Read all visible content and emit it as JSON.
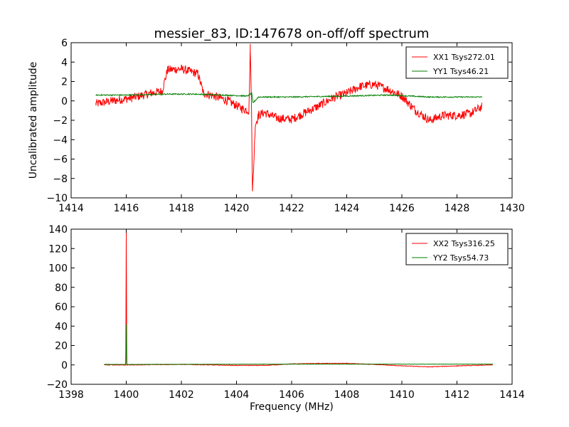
{
  "title": "messier_83, ID:147678 on-off/off spectrum",
  "colors": {
    "xx": "#ff0000",
    "yy": "#007f00",
    "axis": "#000000"
  },
  "chart_data": [
    {
      "type": "line",
      "ylabel": "Uncalibrated amplitude",
      "xlabel": "",
      "xlim": [
        1414,
        1430
      ],
      "ylim": [
        -10,
        6
      ],
      "xticks": [
        1414,
        1416,
        1418,
        1420,
        1422,
        1424,
        1426,
        1428,
        1430
      ],
      "yticks": [
        -10,
        -8,
        -6,
        -4,
        -2,
        0,
        2,
        4,
        6
      ],
      "legend_position": "top-right",
      "series": [
        {
          "name": "XX1 Tsys272.01",
          "color": "#ff0000",
          "noise": 0.45,
          "x": [
            1414.9,
            1415.5,
            1416.2,
            1416.9,
            1417.3,
            1417.5,
            1418.0,
            1418.6,
            1418.8,
            1419.2,
            1419.7,
            1420.2,
            1420.45,
            1420.5,
            1420.55,
            1420.58,
            1420.62,
            1420.68,
            1420.8,
            1421.0,
            1421.5,
            1422.0,
            1422.5,
            1423.0,
            1423.5,
            1424.0,
            1424.5,
            1425.0,
            1425.5,
            1426.0,
            1426.5,
            1427.0,
            1427.5,
            1428.0,
            1428.5,
            1428.9
          ],
          "y": [
            -0.3,
            0.0,
            0.3,
            0.8,
            1.0,
            3.2,
            3.3,
            2.8,
            0.8,
            0.5,
            0.0,
            -0.8,
            -1.0,
            5.5,
            -1.5,
            -9.5,
            -7.0,
            -2.5,
            -1.5,
            -1.2,
            -1.8,
            -1.9,
            -1.2,
            -0.5,
            0.3,
            0.8,
            1.5,
            1.7,
            1.2,
            0.5,
            -1.0,
            -2.0,
            -1.5,
            -1.5,
            -1.3,
            -0.6
          ]
        },
        {
          "name": "YY1 Tsys46.21",
          "color": "#007f00",
          "noise": 0.06,
          "x": [
            1414.9,
            1416.0,
            1417.5,
            1418.5,
            1419.5,
            1420.4,
            1420.55,
            1420.6,
            1420.8,
            1422.0,
            1424.0,
            1425.5,
            1427.0,
            1428.9
          ],
          "y": [
            0.6,
            0.6,
            0.7,
            0.7,
            0.6,
            0.5,
            0.8,
            -0.2,
            0.4,
            0.4,
            0.5,
            0.6,
            0.4,
            0.4
          ]
        }
      ]
    },
    {
      "type": "line",
      "ylabel": "",
      "xlabel": "Frequency (MHz)",
      "xlim": [
        1398,
        1414
      ],
      "ylim": [
        -20,
        140
      ],
      "xticks": [
        1398,
        1400,
        1402,
        1404,
        1406,
        1408,
        1410,
        1412,
        1414
      ],
      "yticks": [
        -20,
        0,
        20,
        40,
        60,
        80,
        100,
        120,
        140
      ],
      "legend_position": "top-right",
      "series": [
        {
          "name": "XX2 Tsys316.25",
          "color": "#ff0000",
          "noise": 0.3,
          "x": [
            1399.2,
            1399.9,
            1399.98,
            1400.0,
            1400.02,
            1400.1,
            1402.0,
            1404.0,
            1405.0,
            1406.0,
            1407.0,
            1408.0,
            1409.0,
            1410.0,
            1411.0,
            1412.0,
            1413.3
          ],
          "y": [
            0.0,
            0.0,
            0.0,
            138.0,
            0.0,
            0.0,
            0.5,
            -0.5,
            -0.5,
            1.0,
            1.5,
            1.5,
            0.5,
            -1.0,
            -2.0,
            -1.0,
            0.0
          ]
        },
        {
          "name": "YY2 Tsys54.73",
          "color": "#007f00",
          "noise": 0.15,
          "x": [
            1399.2,
            1399.9,
            1399.98,
            1400.0,
            1400.02,
            1400.1,
            1406.0,
            1413.3
          ],
          "y": [
            0.5,
            0.5,
            0.5,
            42.0,
            0.5,
            0.5,
            0.8,
            0.8
          ]
        }
      ]
    }
  ]
}
